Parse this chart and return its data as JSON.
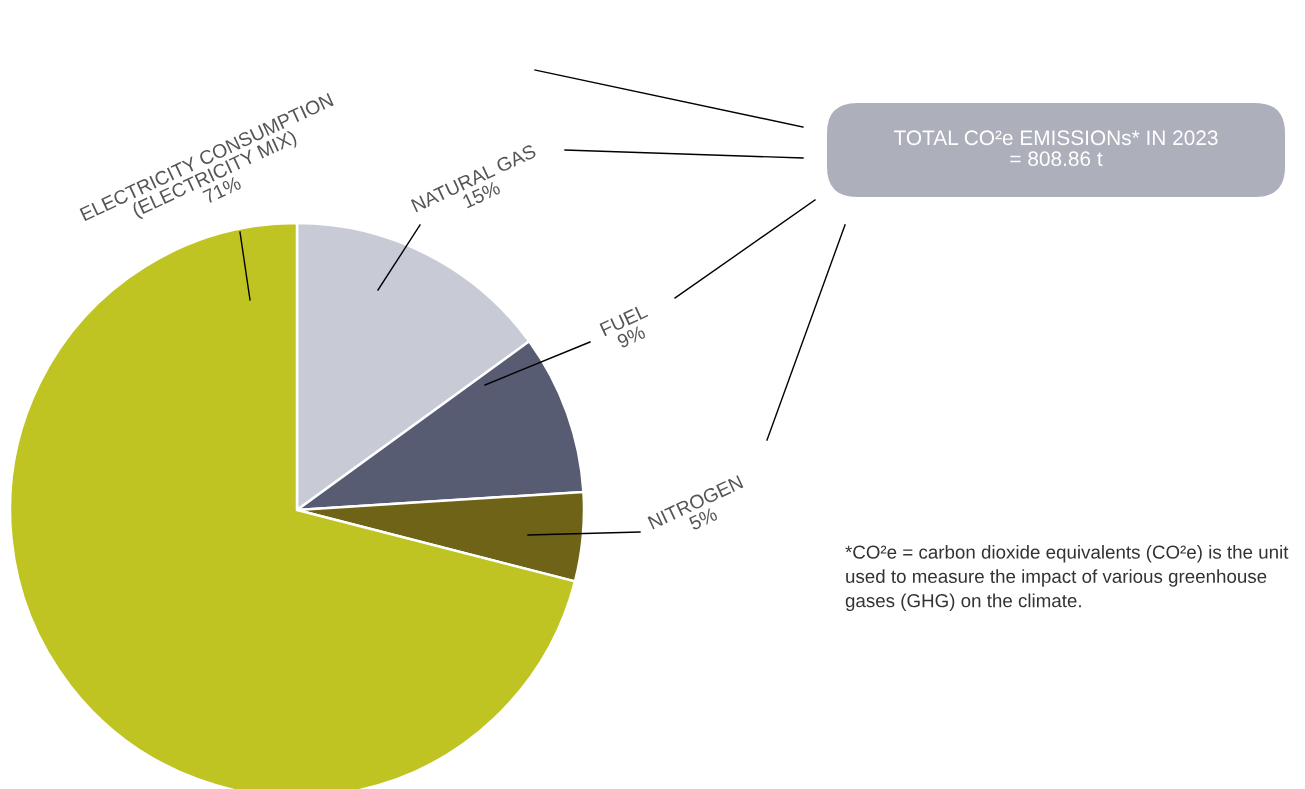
{
  "chart_data": {
    "type": "pie",
    "categories": [
      "NATURAL GAS",
      "FUEL",
      "NITROGEN",
      "ELECTRICITY CONSUMPTION\n(ELECTRICITY MIX)"
    ],
    "values": [
      15,
      9,
      5,
      71
    ],
    "value_labels": [
      "15%",
      "9%",
      "5%",
      "71%"
    ],
    "colors": [
      "#c8cad6",
      "#585c73",
      "#6e6316",
      "#bfc423"
    ],
    "annotations": [
      "TOTAL CO²e EMISSIONs* IN 2023\n= 808.86 t",
      "*CO²e = carbon dioxide equivalents (CO²e) is the unit used to measure the impact of various greenhouse gases (GHG) on the climate."
    ]
  }
}
